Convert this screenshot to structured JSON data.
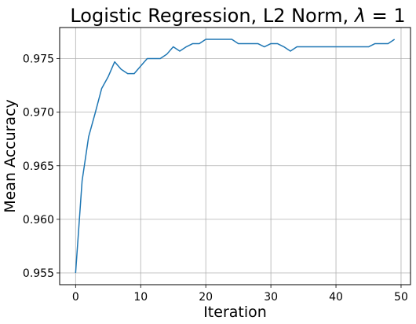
{
  "chart_data": {
    "type": "line",
    "title_prefix": "Logistic Regression, L2 Norm, ",
    "title_symbol": "λ",
    "title_suffix": " = 1",
    "xlabel": "Iteration",
    "ylabel": "Mean Accuracy",
    "xlim": [
      -2.45,
      51.45
    ],
    "ylim": [
      0.9539,
      0.9779
    ],
    "xticks": [
      0,
      10,
      20,
      30,
      40,
      50
    ],
    "yticks": [
      0.955,
      0.96,
      0.965,
      0.97,
      0.975
    ],
    "xtick_labels": [
      "0",
      "10",
      "20",
      "30",
      "40",
      "50"
    ],
    "ytick_labels": [
      "0.955",
      "0.960",
      "0.965",
      "0.970",
      "0.975"
    ],
    "grid": true,
    "series": [
      {
        "color": "#1f77b4",
        "x": [
          0,
          1,
          2,
          3,
          4,
          5,
          6,
          7,
          8,
          9,
          10,
          11,
          12,
          13,
          14,
          15,
          16,
          17,
          18,
          19,
          20,
          21,
          22,
          23,
          24,
          25,
          26,
          27,
          28,
          29,
          30,
          31,
          32,
          33,
          34,
          35,
          36,
          37,
          38,
          39,
          40,
          41,
          42,
          43,
          44,
          45,
          46,
          47,
          48,
          49
        ],
        "y": [
          0.955,
          0.9636,
          0.9677,
          0.9699,
          0.9722,
          0.9733,
          0.9747,
          0.974,
          0.9736,
          0.9736,
          0.9743,
          0.975,
          0.975,
          0.975,
          0.9754,
          0.9761,
          0.9757,
          0.9761,
          0.9764,
          0.9764,
          0.9768,
          0.9768,
          0.9768,
          0.9768,
          0.9768,
          0.9764,
          0.9764,
          0.9764,
          0.9764,
          0.9761,
          0.9764,
          0.9764,
          0.9761,
          0.9757,
          0.9761,
          0.9761,
          0.9761,
          0.9761,
          0.9761,
          0.9761,
          0.9761,
          0.9761,
          0.9761,
          0.9761,
          0.9761,
          0.9761,
          0.9764,
          0.9764,
          0.9764,
          0.9768
        ]
      }
    ]
  }
}
